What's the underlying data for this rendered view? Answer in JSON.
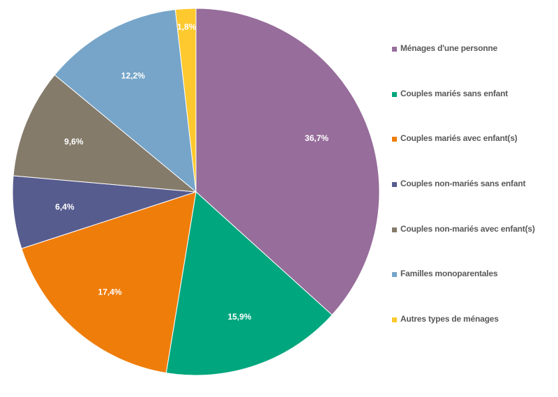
{
  "chart_data": {
    "type": "pie",
    "title": "",
    "slices": [
      {
        "name": "Ménages d'une personne",
        "value": 36.7,
        "label": "36,7%",
        "color": "#976d9b"
      },
      {
        "name": "Couples mariés sans enfant",
        "value": 15.9,
        "label": "15,9%",
        "color": "#00a67e"
      },
      {
        "name": "Couples mariés avec enfant(s)",
        "value": 17.4,
        "label": "17,4%",
        "color": "#ef7d0a"
      },
      {
        "name": "Couples non-mariés sans enfant",
        "value": 6.4,
        "label": "6,4%",
        "color": "#575c8f"
      },
      {
        "name": "Couples non-mariés avec enfant(s)",
        "value": 9.6,
        "label": "9,6%",
        "color": "#857b6b"
      },
      {
        "name": "Familles monoparentales",
        "value": 12.2,
        "label": "12,2%",
        "color": "#76a5c9"
      },
      {
        "name": "Autres types de ménages",
        "value": 1.8,
        "label": "1,8%",
        "color": "#fec92e"
      }
    ],
    "legend": {
      "position": "right",
      "labels": [
        "Ménages d'une personne",
        "Couples mariés sans enfant",
        "Couples mariés avec enfant(s)",
        "Couples non-mariés sans enfant",
        "Couples non-mariés avec enfant(s)",
        "Familles monoparentales",
        "Autres types de ménages"
      ]
    },
    "start_angle_deg": 0,
    "direction": "clockwise"
  }
}
